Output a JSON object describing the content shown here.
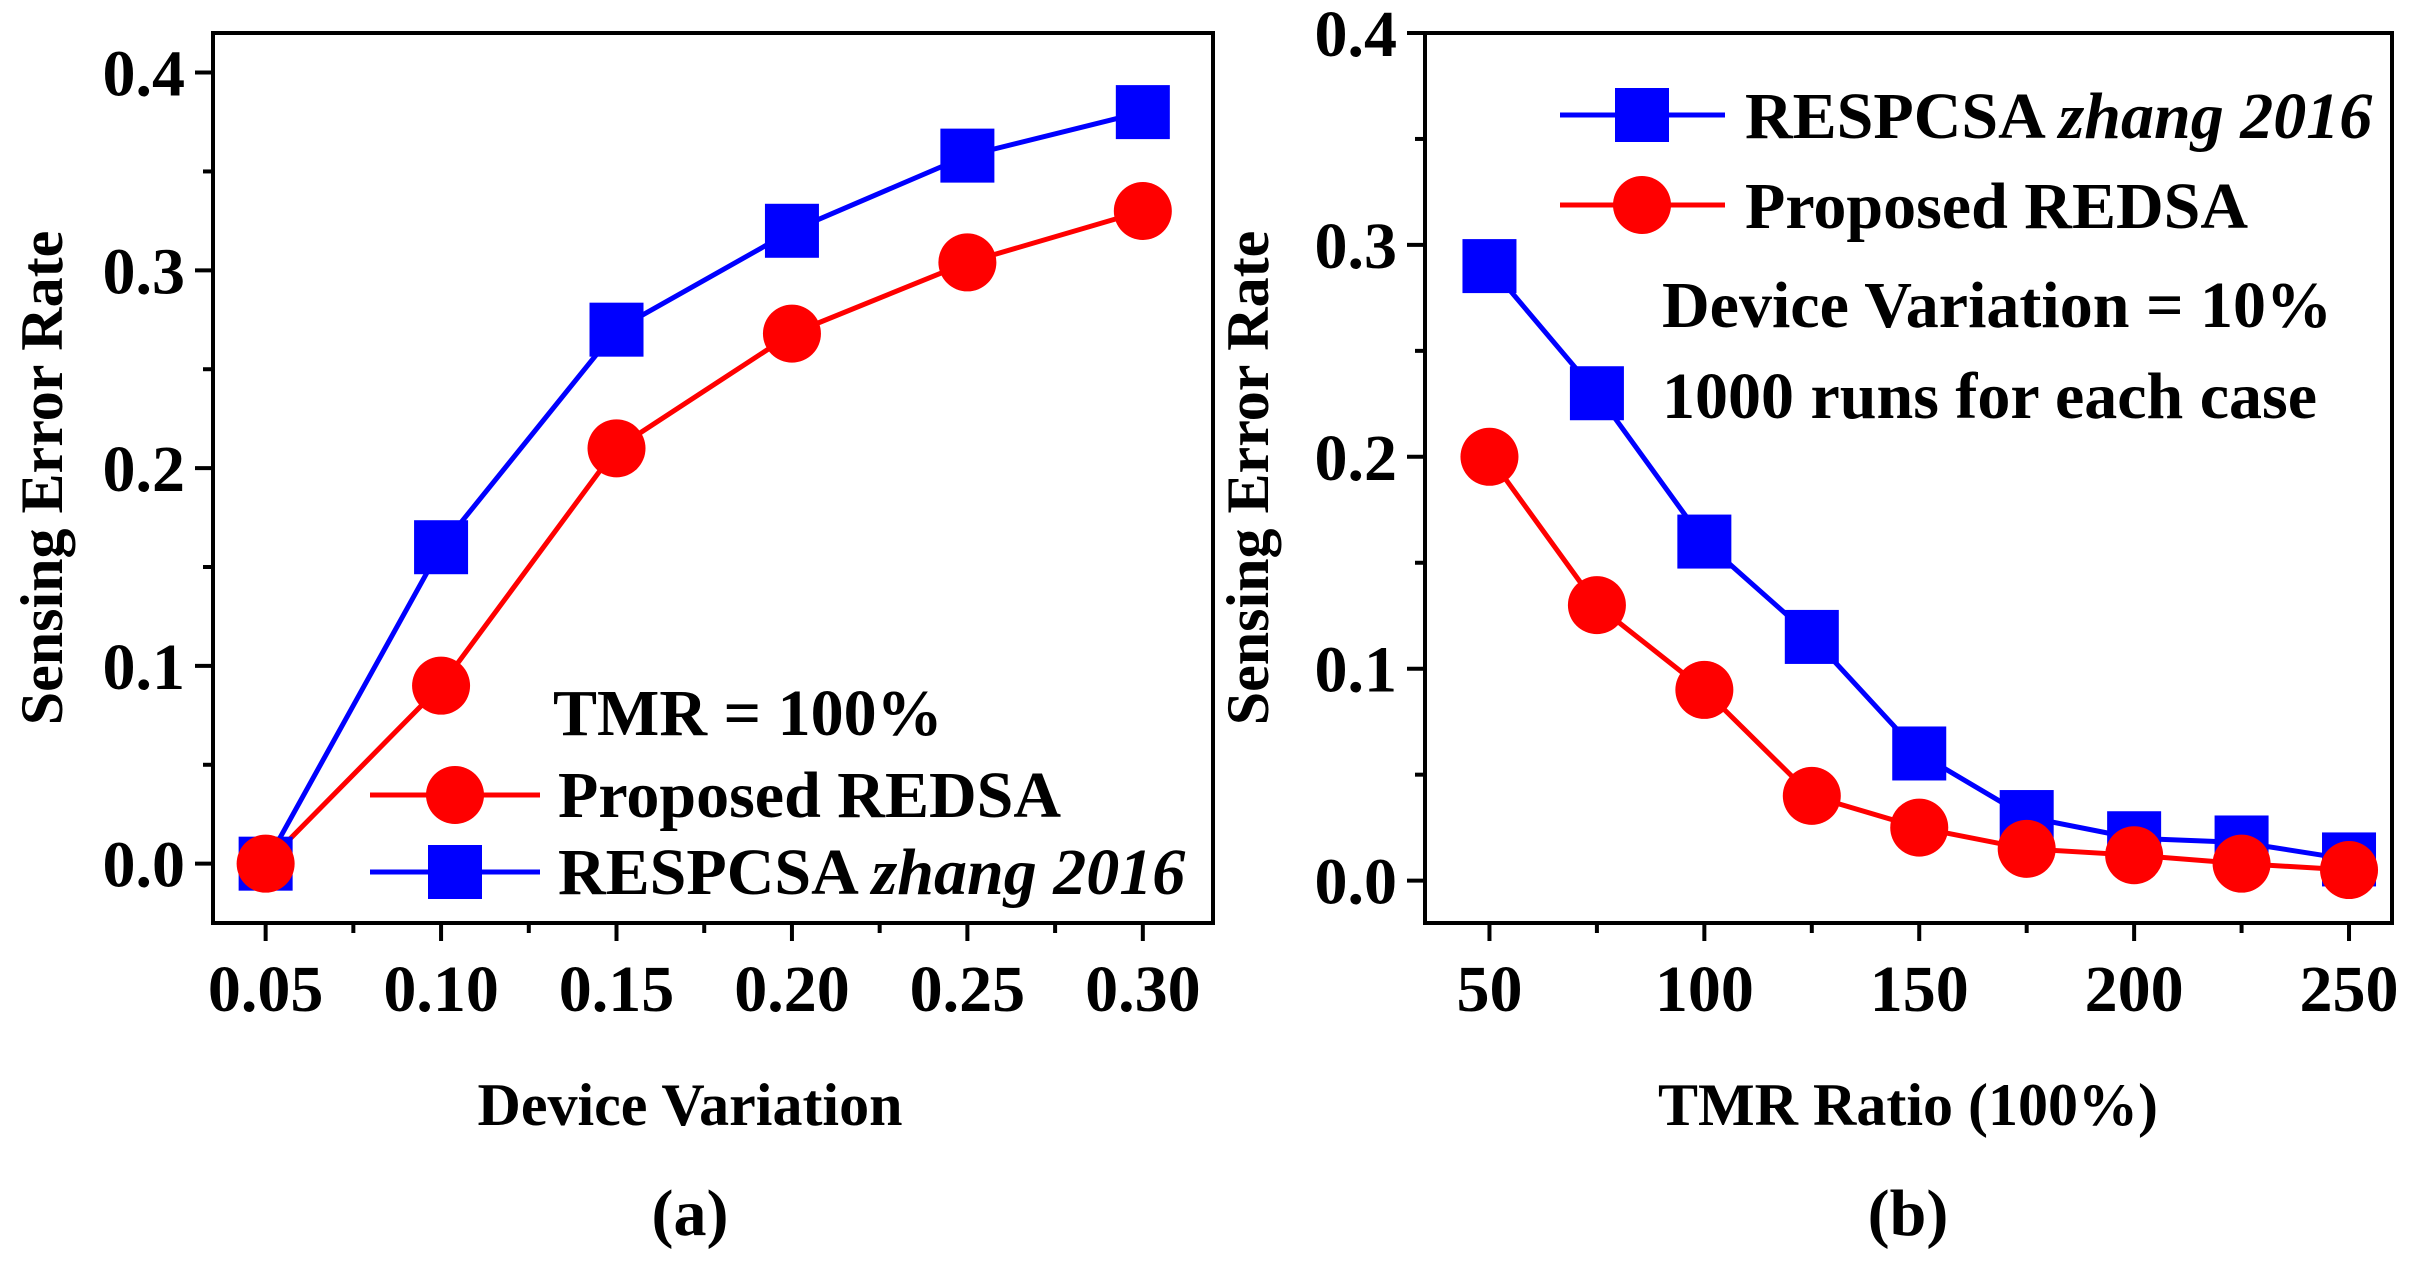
{
  "chart_data": [
    {
      "type": "line",
      "caption": "(a)",
      "title": "",
      "xlabel": "Device Variation",
      "ylabel": "Sensing Error Rate",
      "xlim": [
        0.035,
        0.32
      ],
      "ylim": [
        -0.03,
        0.42
      ],
      "x": [
        0.05,
        0.1,
        0.15,
        0.2,
        0.25,
        0.3
      ],
      "x_ticks": [
        "0.05",
        "0.10",
        "0.15",
        "0.20",
        "0.25",
        "0.30"
      ],
      "y_ticks": [
        "0.0",
        "0.1",
        "0.2",
        "0.3",
        "0.4"
      ],
      "annotation": "TMR = 100%",
      "legend_position": "bottom-right",
      "series": [
        {
          "name": "RESPCSA",
          "name_italic": "zhang 2016",
          "color": "#0000ff",
          "marker": "square",
          "values": [
            0.0,
            0.16,
            0.27,
            0.32,
            0.358,
            0.38
          ]
        },
        {
          "name": "Proposed REDSA",
          "color": "#ff0000",
          "marker": "circle",
          "values": [
            0.0,
            0.09,
            0.21,
            0.268,
            0.304,
            0.33
          ]
        }
      ]
    },
    {
      "type": "line",
      "caption": "(b)",
      "title": "",
      "xlabel": "TMR Ratio (100%)",
      "ylabel": "Sensing Error Rate",
      "xlim": [
        35,
        260
      ],
      "ylim": [
        -0.02,
        0.4
      ],
      "x": [
        50,
        75,
        100,
        125,
        150,
        175,
        200,
        225,
        250
      ],
      "x_ticks": [
        "50",
        "100",
        "150",
        "200",
        "250"
      ],
      "y_ticks": [
        "0.0",
        "0.1",
        "0.2",
        "0.3",
        "0.4"
      ],
      "annotations": [
        "Device Variation = 10%",
        "1000 runs for each case"
      ],
      "legend_position": "top-right",
      "series": [
        {
          "name": "RESPCSA",
          "name_italic": "zhang 2016",
          "color": "#0000ff",
          "marker": "square",
          "values": [
            0.29,
            0.23,
            0.16,
            0.115,
            0.06,
            0.03,
            0.02,
            0.018,
            0.01
          ]
        },
        {
          "name": "Proposed REDSA",
          "color": "#ff0000",
          "marker": "circle",
          "values": [
            0.2,
            0.13,
            0.09,
            0.04,
            0.025,
            0.015,
            0.012,
            0.008,
            0.005
          ]
        }
      ]
    }
  ]
}
